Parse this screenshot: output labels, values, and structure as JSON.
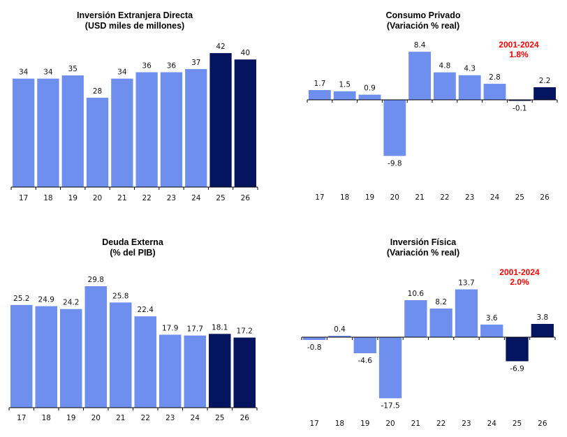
{
  "colors": {
    "historic": "#6f8fef",
    "forecast": "#04145e",
    "note": "#ff0000",
    "axis": "#000000"
  },
  "chart_data": [
    {
      "id": "fdi",
      "type": "bar",
      "title": "Inversión Extranjera Directa",
      "subtitle": "(USD miles de millones)",
      "categories": [
        "17",
        "18",
        "19",
        "20",
        "21",
        "22",
        "23",
        "24",
        "25",
        "26"
      ],
      "values": [
        34,
        34,
        35,
        28,
        34,
        36,
        36,
        37,
        42,
        40
      ],
      "labels": [
        "34",
        "34",
        "35",
        "28",
        "34",
        "36",
        "36",
        "37",
        "42",
        "40"
      ],
      "forecast_from_index": 8,
      "ylim": [
        0,
        45
      ],
      "grid": false,
      "note": null
    },
    {
      "id": "consumo",
      "type": "bar",
      "title": "Consumo Privado",
      "subtitle": "(Variación % real)",
      "categories": [
        "17",
        "18",
        "19",
        "20",
        "21",
        "22",
        "23",
        "24",
        "25",
        "26"
      ],
      "values": [
        1.7,
        1.5,
        0.9,
        -9.8,
        8.4,
        4.8,
        4.3,
        2.8,
        -0.1,
        2.2
      ],
      "labels": [
        "1.7",
        "1.5",
        "0.9",
        "-9.8",
        "8.4",
        "4.8",
        "4.3",
        "2.8",
        "-0.1",
        "2.2"
      ],
      "forecast_from_index": 8,
      "ylim": [
        -12,
        10
      ],
      "grid": false,
      "note": {
        "period": "2001-2024",
        "value": "1.8%"
      }
    },
    {
      "id": "deuda",
      "type": "bar",
      "title": "Deuda Externa",
      "subtitle": "(% del PIB)",
      "categories": [
        "17",
        "18",
        "19",
        "20",
        "21",
        "22",
        "23",
        "24",
        "25",
        "26"
      ],
      "values": [
        25.2,
        24.9,
        24.2,
        29.8,
        25.8,
        22.4,
        17.9,
        17.7,
        18.1,
        17.2
      ],
      "labels": [
        "25.2",
        "24.9",
        "24.2",
        "29.8",
        "25.8",
        "22.4",
        "17.9",
        "17.7",
        "18.1",
        "17.2"
      ],
      "forecast_from_index": 8,
      "ylim": [
        0,
        32
      ],
      "grid": false,
      "note": null
    },
    {
      "id": "fisica",
      "type": "bar",
      "title": "Inversión Física",
      "subtitle": "(Variación % real)",
      "categories": [
        "17",
        "18",
        "19",
        "20",
        "21",
        "22",
        "23",
        "24",
        "25",
        "26"
      ],
      "values": [
        -0.8,
        0.4,
        -4.6,
        -17.5,
        10.6,
        8.2,
        13.7,
        3.6,
        -6.9,
        3.8
      ],
      "labels": [
        "-0.8",
        "0.4",
        "-4.6",
        "-17.5",
        "10.6",
        "8.2",
        "13.7",
        "3.6",
        "-6.9",
        "3.8"
      ],
      "forecast_from_index": 8,
      "ylim": [
        -20,
        16
      ],
      "grid": false,
      "note": {
        "period": "2001-2024",
        "value": "2.0%"
      }
    }
  ]
}
